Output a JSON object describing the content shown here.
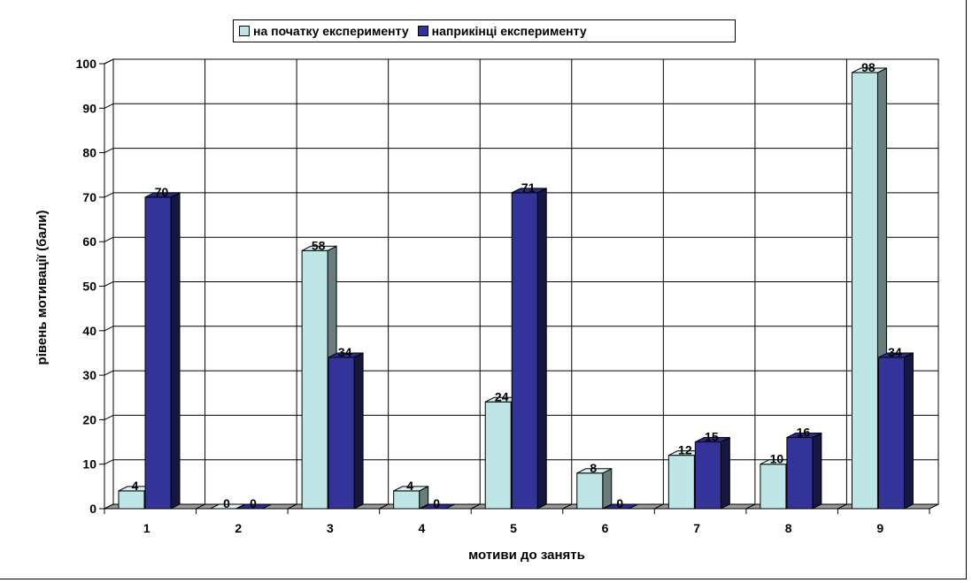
{
  "chart_data": {
    "type": "bar",
    "categories": [
      "1",
      "2",
      "3",
      "4",
      "5",
      "6",
      "7",
      "8",
      "9"
    ],
    "series": [
      {
        "name": "на початку експерименту",
        "values": [
          4,
          0,
          58,
          4,
          24,
          8,
          12,
          10,
          98
        ],
        "color": "#BFE6E6"
      },
      {
        "name": "наприкінці експерименту",
        "values": [
          70,
          0,
          34,
          0,
          71,
          0,
          15,
          16,
          34
        ],
        "color": "#333399"
      }
    ],
    "xlabel": "мотиви до занять",
    "ylabel": "рівень мотивації (бали)",
    "ylim": [
      0,
      100
    ],
    "yticks": [
      "0",
      "10",
      "20",
      "30",
      "40",
      "50",
      "60",
      "70",
      "80",
      "90",
      "100"
    ],
    "grid": true,
    "legend_position": "top",
    "style": "3d-clustered-column"
  }
}
